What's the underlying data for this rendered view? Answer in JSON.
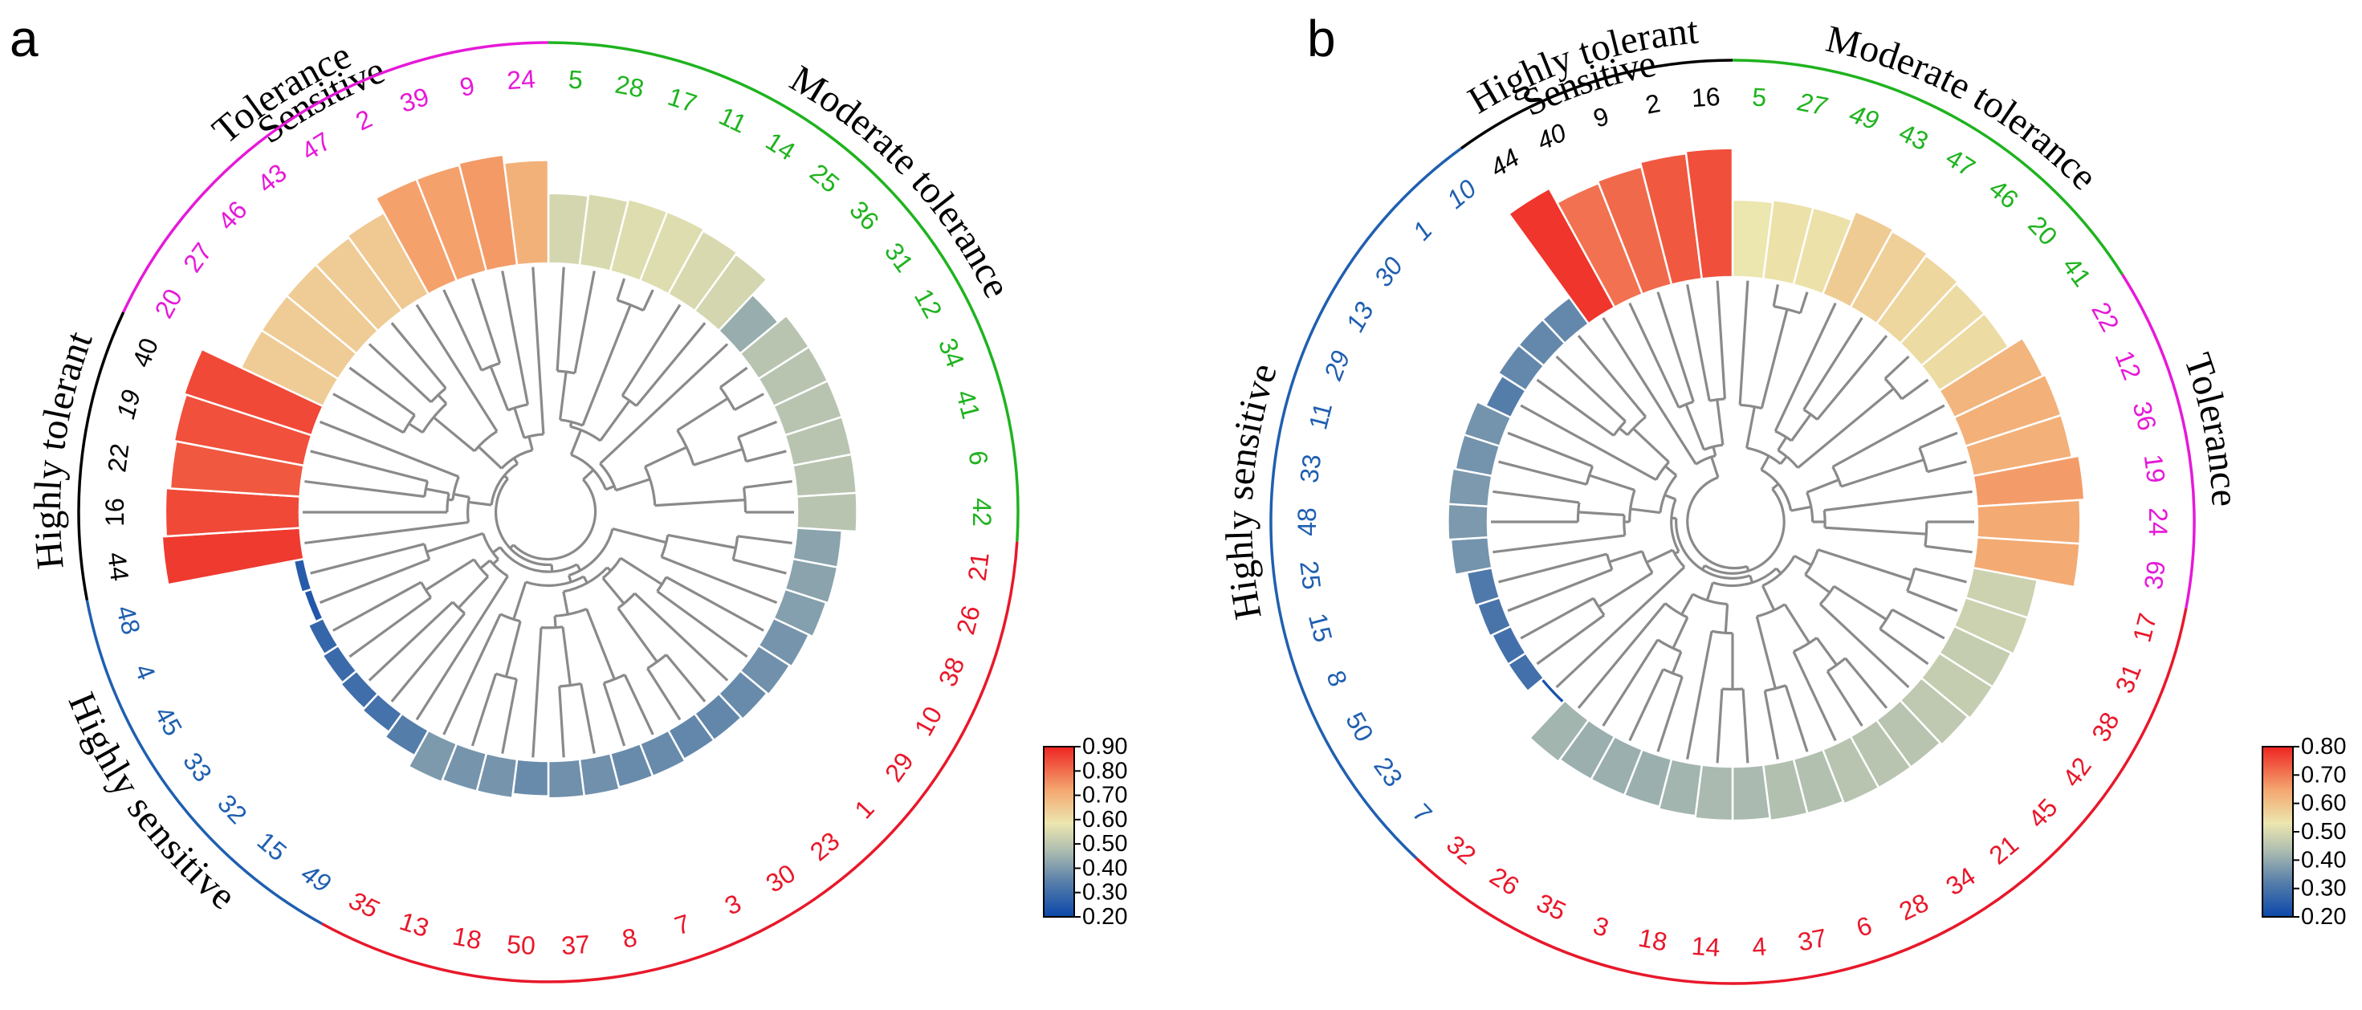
{
  "chart_data": [
    {
      "type": "circular-bar-dendrogram",
      "panel": "a",
      "colorbar": {
        "min": 0.2,
        "max": 0.9,
        "ticks": [
          "0.90",
          "0.80",
          "0.70",
          "0.60",
          "0.50",
          "0.40",
          "0.30",
          "0.20"
        ]
      },
      "groups": [
        {
          "name": "Moderate tolerance",
          "color": "#1fb31f"
        },
        {
          "name": "Sensitive",
          "color": "#e8182a"
        },
        {
          "name": "Highly sensitive",
          "color": "#1f5fb0"
        },
        {
          "name": "Highly tolerant",
          "color": "#000000"
        },
        {
          "name": "Tolerance",
          "color": "#e619d8"
        }
      ],
      "leaves": [
        {
          "label": "5",
          "value": 0.54,
          "group": 0
        },
        {
          "label": "28",
          "value": 0.55,
          "group": 0
        },
        {
          "label": "17",
          "value": 0.56,
          "group": 0
        },
        {
          "label": "11",
          "value": 0.56,
          "group": 0
        },
        {
          "label": "14",
          "value": 0.55,
          "group": 0
        },
        {
          "label": "25",
          "value": 0.54,
          "group": 0
        },
        {
          "label": "36",
          "value": 0.44,
          "group": 0
        },
        {
          "label": "31",
          "value": 0.49,
          "group": 0
        },
        {
          "label": "12",
          "value": 0.49,
          "group": 0
        },
        {
          "label": "34",
          "value": 0.49,
          "group": 0
        },
        {
          "label": "41",
          "value": 0.49,
          "group": 0
        },
        {
          "label": "6",
          "value": 0.49,
          "group": 0
        },
        {
          "label": "42",
          "value": 0.49,
          "group": 0
        },
        {
          "label": "21",
          "value": 0.42,
          "group": 1
        },
        {
          "label": "26",
          "value": 0.42,
          "group": 1
        },
        {
          "label": "38",
          "value": 0.41,
          "group": 1
        },
        {
          "label": "10",
          "value": 0.39,
          "group": 1
        },
        {
          "label": "29",
          "value": 0.38,
          "group": 1
        },
        {
          "label": "1",
          "value": 0.37,
          "group": 1
        },
        {
          "label": "23",
          "value": 0.36,
          "group": 1
        },
        {
          "label": "30",
          "value": 0.36,
          "group": 1
        },
        {
          "label": "3",
          "value": 0.37,
          "group": 1
        },
        {
          "label": "7",
          "value": 0.37,
          "group": 1
        },
        {
          "label": "8",
          "value": 0.38,
          "group": 1
        },
        {
          "label": "37",
          "value": 0.38,
          "group": 1
        },
        {
          "label": "50",
          "value": 0.37,
          "group": 1
        },
        {
          "label": "18",
          "value": 0.39,
          "group": 1
        },
        {
          "label": "13",
          "value": 0.39,
          "group": 1
        },
        {
          "label": "35",
          "value": 0.4,
          "group": 1
        },
        {
          "label": "49",
          "value": 0.34,
          "group": 2
        },
        {
          "label": "15",
          "value": 0.31,
          "group": 2
        },
        {
          "label": "32",
          "value": 0.3,
          "group": 2
        },
        {
          "label": "33",
          "value": 0.29,
          "group": 2
        },
        {
          "label": "45",
          "value": 0.28,
          "group": 2
        },
        {
          "label": "4",
          "value": 0.24,
          "group": 2
        },
        {
          "label": "48",
          "value": 0.25,
          "group": 2
        },
        {
          "label": "44",
          "value": 0.87,
          "group": 3
        },
        {
          "label": "16",
          "value": 0.85,
          "group": 3
        },
        {
          "label": "22",
          "value": 0.83,
          "group": 3
        },
        {
          "label": "19",
          "value": 0.84,
          "group": 3
        },
        {
          "label": "40",
          "value": 0.85,
          "group": 3
        },
        {
          "label": "20",
          "value": 0.64,
          "group": 4
        },
        {
          "label": "27",
          "value": 0.64,
          "group": 4
        },
        {
          "label": "46",
          "value": 0.64,
          "group": 4
        },
        {
          "label": "43",
          "value": 0.64,
          "group": 4
        },
        {
          "label": "47",
          "value": 0.65,
          "group": 4
        },
        {
          "label": "2",
          "value": 0.73,
          "group": 4
        },
        {
          "label": "39",
          "value": 0.73,
          "group": 4
        },
        {
          "label": "9",
          "value": 0.74,
          "group": 4
        },
        {
          "label": "24",
          "value": 0.7,
          "group": 4
        }
      ]
    },
    {
      "type": "circular-bar-dendrogram",
      "panel": "b",
      "colorbar": {
        "min": 0.2,
        "max": 0.8,
        "ticks": [
          "0.80",
          "0.70",
          "0.60",
          "0.50",
          "0.40",
          "0.30",
          "0.20"
        ]
      },
      "groups": [
        {
          "name": "Moderate tolerance",
          "color": "#1fb31f"
        },
        {
          "name": "Tolerance",
          "color": "#e619d8"
        },
        {
          "name": "Sensitive",
          "color": "#e8182a"
        },
        {
          "name": "Highly sensitive",
          "color": "#1f5fb0"
        },
        {
          "name": "Highly tolerant",
          "color": "#000000"
        }
      ],
      "leaves": [
        {
          "label": "5",
          "value": 0.53,
          "group": 0
        },
        {
          "label": "27",
          "value": 0.54,
          "group": 0
        },
        {
          "label": "49",
          "value": 0.54,
          "group": 0
        },
        {
          "label": "43",
          "value": 0.58,
          "group": 0
        },
        {
          "label": "47",
          "value": 0.57,
          "group": 0
        },
        {
          "label": "46",
          "value": 0.56,
          "group": 0
        },
        {
          "label": "20",
          "value": 0.55,
          "group": 0
        },
        {
          "label": "41",
          "value": 0.55,
          "group": 0
        },
        {
          "label": "22",
          "value": 0.62,
          "group": 1
        },
        {
          "label": "12",
          "value": 0.63,
          "group": 1
        },
        {
          "label": "36",
          "value": 0.63,
          "group": 1
        },
        {
          "label": "19",
          "value": 0.66,
          "group": 1
        },
        {
          "label": "24",
          "value": 0.64,
          "group": 1
        },
        {
          "label": "39",
          "value": 0.64,
          "group": 1
        },
        {
          "label": "17",
          "value": 0.48,
          "group": 2
        },
        {
          "label": "31",
          "value": 0.48,
          "group": 2
        },
        {
          "label": "38",
          "value": 0.47,
          "group": 2
        },
        {
          "label": "42",
          "value": 0.47,
          "group": 2
        },
        {
          "label": "45",
          "value": 0.46,
          "group": 2
        },
        {
          "label": "21",
          "value": 0.45,
          "group": 2
        },
        {
          "label": "34",
          "value": 0.45,
          "group": 2
        },
        {
          "label": "28",
          "value": 0.45,
          "group": 2
        },
        {
          "label": "6",
          "value": 0.44,
          "group": 2
        },
        {
          "label": "37",
          "value": 0.44,
          "group": 2
        },
        {
          "label": "4",
          "value": 0.43,
          "group": 2
        },
        {
          "label": "14",
          "value": 0.43,
          "group": 2
        },
        {
          "label": "18",
          "value": 0.42,
          "group": 2
        },
        {
          "label": "3",
          "value": 0.41,
          "group": 2
        },
        {
          "label": "35",
          "value": 0.41,
          "group": 2
        },
        {
          "label": "26",
          "value": 0.41,
          "group": 2
        },
        {
          "label": "32",
          "value": 0.42,
          "group": 2
        },
        {
          "label": "7",
          "value": 0.22,
          "group": 3
        },
        {
          "label": "23",
          "value": 0.29,
          "group": 3
        },
        {
          "label": "50",
          "value": 0.29,
          "group": 3
        },
        {
          "label": "8",
          "value": 0.3,
          "group": 3
        },
        {
          "label": "15",
          "value": 0.31,
          "group": 3
        },
        {
          "label": "25",
          "value": 0.36,
          "group": 3
        },
        {
          "label": "48",
          "value": 0.37,
          "group": 3
        },
        {
          "label": "33",
          "value": 0.37,
          "group": 3
        },
        {
          "label": "11",
          "value": 0.36,
          "group": 3
        },
        {
          "label": "29",
          "value": 0.36,
          "group": 3
        },
        {
          "label": "13",
          "value": 0.32,
          "group": 3
        },
        {
          "label": "30",
          "value": 0.34,
          "group": 3
        },
        {
          "label": "1",
          "value": 0.34,
          "group": 3
        },
        {
          "label": "10",
          "value": 0.34,
          "group": 3
        },
        {
          "label": "44",
          "value": 0.78,
          "group": 4
        },
        {
          "label": "40",
          "value": 0.71,
          "group": 4
        },
        {
          "label": "9",
          "value": 0.72,
          "group": 4
        },
        {
          "label": "2",
          "value": 0.74,
          "group": 4
        },
        {
          "label": "16",
          "value": 0.75,
          "group": 4
        }
      ]
    }
  ]
}
